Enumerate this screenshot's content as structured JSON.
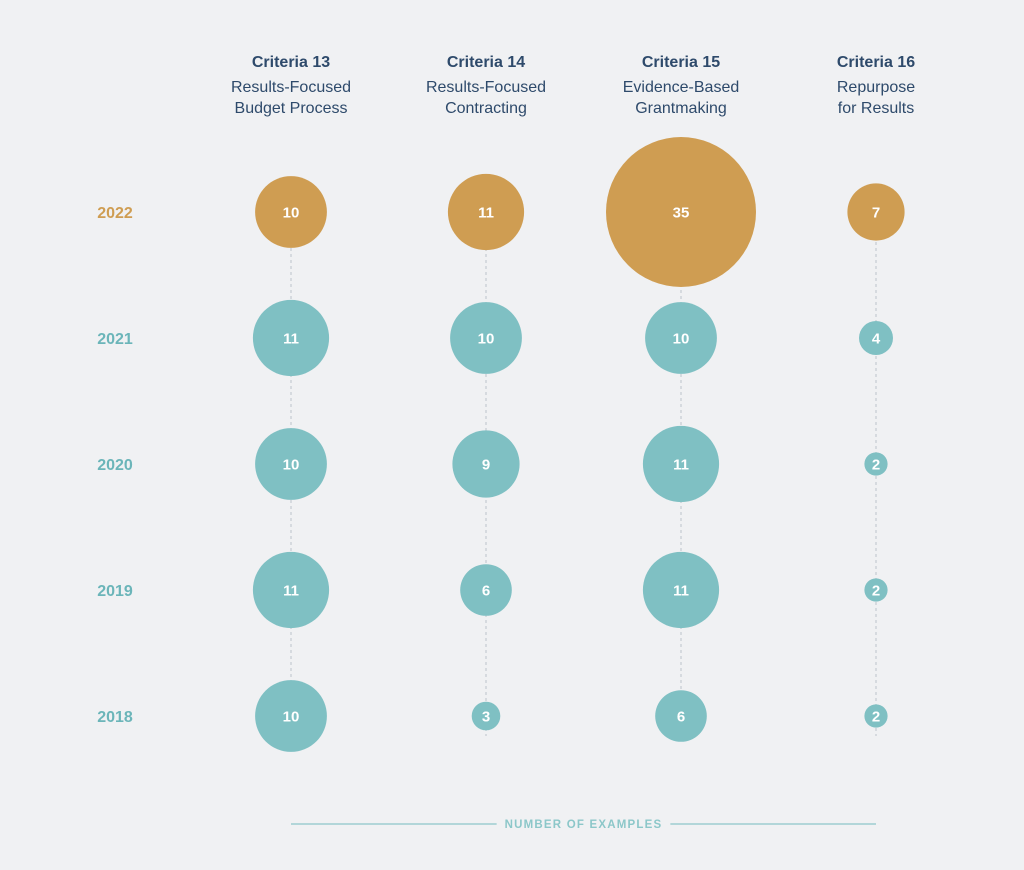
{
  "chart_data": {
    "type": "bubble",
    "columns": [
      {
        "title": "Criteria 13",
        "subtitle": [
          "Results-Focused",
          "Budget Process"
        ]
      },
      {
        "title": "Criteria 14",
        "subtitle": [
          "Results-Focused",
          "Contracting"
        ]
      },
      {
        "title": "Criteria 15",
        "subtitle": [
          "Evidence-Based",
          "Grantmaking"
        ]
      },
      {
        "title": "Criteria 16",
        "subtitle": [
          "Repurpose",
          "for Results"
        ]
      }
    ],
    "years": [
      "2022",
      "2021",
      "2020",
      "2019",
      "2018"
    ],
    "highlight_year": "2022",
    "values": [
      [
        10,
        11,
        35,
        7
      ],
      [
        11,
        10,
        10,
        4
      ],
      [
        10,
        9,
        11,
        2
      ],
      [
        11,
        6,
        11,
        2
      ],
      [
        10,
        3,
        6,
        2
      ]
    ],
    "xlabel": "NUMBER OF EXAMPLES",
    "colors": {
      "highlight": "#cf9d52",
      "default": "#7fc0c3",
      "title": "#2e4a6b",
      "year_highlight": "#cf9d52",
      "year_default": "#6bb5b9",
      "axis": "#8cc7c9",
      "connector": "#c4cbd2",
      "background": "#f0f1f3"
    }
  }
}
